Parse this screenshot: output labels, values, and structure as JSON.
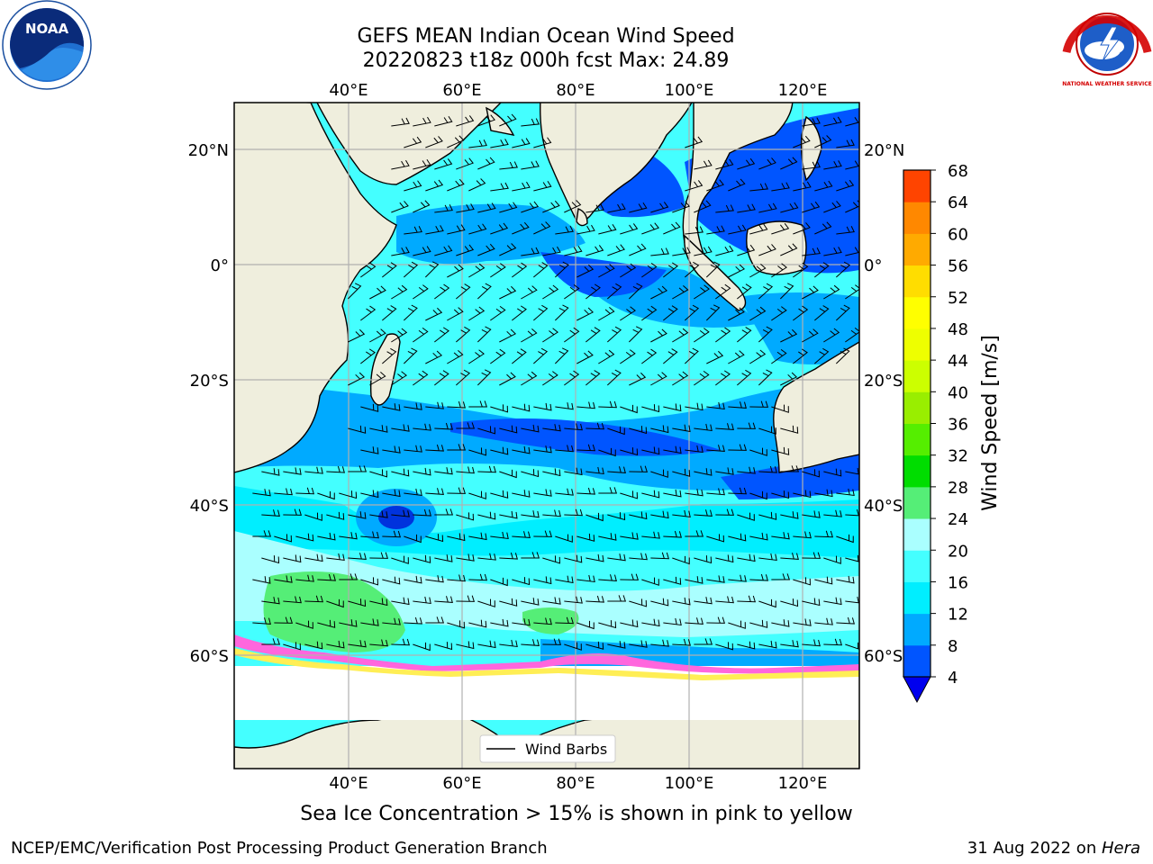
{
  "header": {
    "title_line1": "GEFS MEAN Indian Ocean Wind Speed",
    "title_line2": "20220823 t18z 000h fcst   Max: 24.89"
  },
  "map": {
    "lon_ticks": [
      "40°E",
      "60°E",
      "80°E",
      "100°E",
      "120°E"
    ],
    "lat_ticks_left": [
      "20°N",
      "0°",
      "20°S",
      "40°S",
      "60°S"
    ],
    "lat_ticks_right": [
      "20°N",
      "0°",
      "20°S",
      "40°S",
      "60°S"
    ],
    "legend_label": "Wind Barbs",
    "colors": {
      "land": "#efeedd",
      "ice_pink": "#ff66dd",
      "ice_yellow": "#ffee55"
    }
  },
  "colorbar": {
    "label": "Wind Speed [m/s]",
    "ticks": [
      "4",
      "8",
      "12",
      "16",
      "20",
      "24",
      "28",
      "32",
      "36",
      "40",
      "44",
      "48",
      "52",
      "56",
      "60",
      "64",
      "68"
    ],
    "colors": [
      "#0055ff",
      "#00aaff",
      "#00eeff",
      "#44ffff",
      "#aaffff",
      "#55ee77",
      "#00dd00",
      "#55ee00",
      "#99ee00",
      "#ccff00",
      "#eeff00",
      "#ffff00",
      "#ffdd00",
      "#ffaa00",
      "#ff8800",
      "#ff4400",
      "#ff0000"
    ],
    "extend_color": "#0000ee"
  },
  "footer": {
    "subtitle": "Sea Ice Concentration > 15% is shown in pink to yellow",
    "credit": "NCEP/EMC/Verification Post Processing Product Generation Branch",
    "date": "31 Aug 2022 on ",
    "machine": "Hera"
  },
  "logos": {
    "noaa_text": "NOAA",
    "nws_text": "NATIONAL WEATHER SERVICE"
  }
}
